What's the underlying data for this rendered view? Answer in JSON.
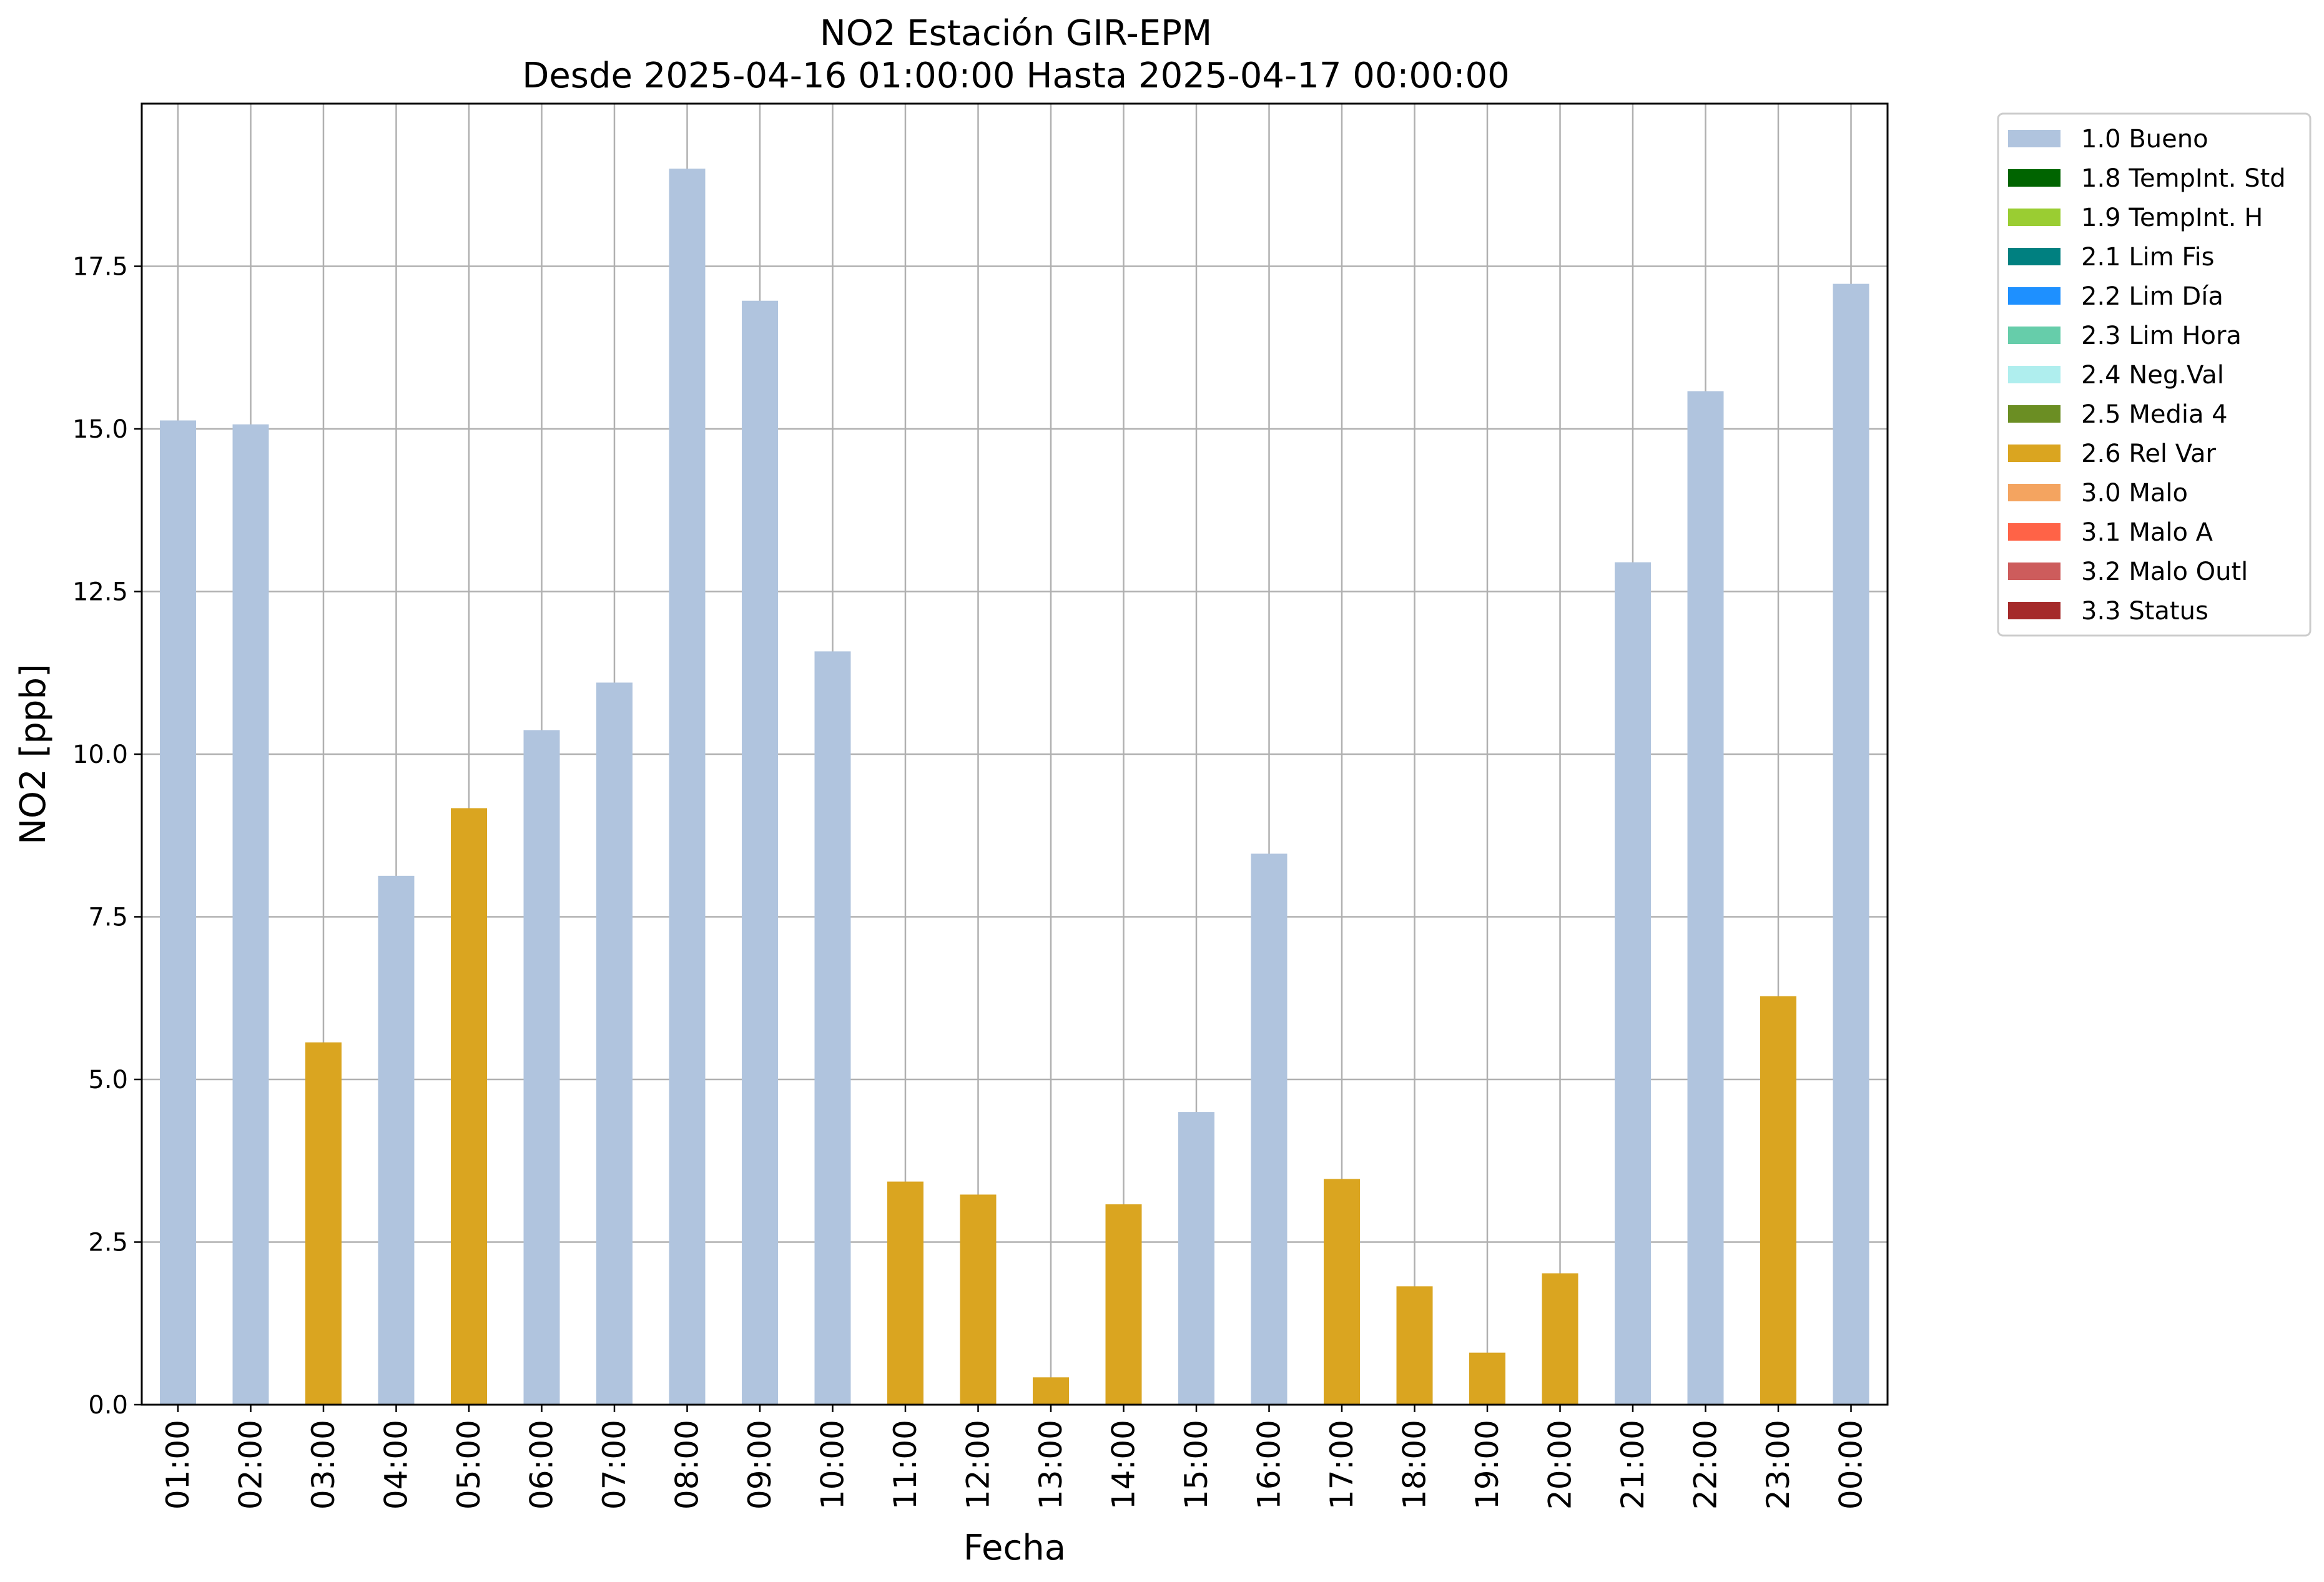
{
  "chart_data": {
    "type": "bar",
    "title": "NO2 Estación GIR-EPM",
    "subtitle": "Desde 2025-04-16 01:00:00 Hasta 2025-04-17 00:00:00",
    "xlabel": "Fecha",
    "ylabel": "NO2 [ppb]",
    "ylim": [
      0,
      20
    ],
    "yticks": [
      "0.0",
      "2.5",
      "5.0",
      "7.5",
      "10.0",
      "12.5",
      "15.0",
      "17.5"
    ],
    "grid": true,
    "legend_position": "outside-top-right",
    "categories": [
      "01:00",
      "02:00",
      "03:00",
      "04:00",
      "05:00",
      "06:00",
      "07:00",
      "08:00",
      "09:00",
      "10:00",
      "11:00",
      "12:00",
      "13:00",
      "14:00",
      "15:00",
      "16:00",
      "17:00",
      "18:00",
      "19:00",
      "20:00",
      "21:00",
      "22:00",
      "23:00",
      "00:00"
    ],
    "values": [
      15.13,
      15.07,
      5.57,
      8.13,
      9.17,
      10.37,
      11.1,
      19.0,
      16.97,
      11.58,
      3.43,
      3.23,
      0.42,
      3.08,
      4.5,
      8.47,
      3.47,
      1.82,
      0.8,
      2.02,
      12.95,
      15.58,
      6.28,
      17.23
    ],
    "flags": [
      "1.0 Bueno",
      "1.0 Bueno",
      "2.6 Rel Var",
      "1.0 Bueno",
      "2.6 Rel Var",
      "1.0 Bueno",
      "1.0 Bueno",
      "1.0 Bueno",
      "1.0 Bueno",
      "1.0 Bueno",
      "2.6 Rel Var",
      "2.6 Rel Var",
      "2.6 Rel Var",
      "2.6 Rel Var",
      "1.0 Bueno",
      "1.0 Bueno",
      "2.6 Rel Var",
      "2.6 Rel Var",
      "2.6 Rel Var",
      "2.6 Rel Var",
      "1.0 Bueno",
      "1.0 Bueno",
      "2.6 Rel Var",
      "1.0 Bueno"
    ],
    "legend": [
      {
        "label": "1.0 Bueno",
        "color": "#b0c4de"
      },
      {
        "label": "1.8 TempInt. Std",
        "color": "#006400"
      },
      {
        "label": "1.9 TempInt. H",
        "color": "#9acd32"
      },
      {
        "label": "2.1 Lim Fis",
        "color": "#008080"
      },
      {
        "label": "2.2 Lim Día",
        "color": "#1e90ff"
      },
      {
        "label": "2.3 Lim Hora",
        "color": "#66cdaa"
      },
      {
        "label": "2.4 Neg.Val",
        "color": "#afeeee"
      },
      {
        "label": "2.5 Media 4",
        "color": "#6b8e23"
      },
      {
        "label": "2.6 Rel Var",
        "color": "#daa520"
      },
      {
        "label": "3.0 Malo",
        "color": "#f4a460"
      },
      {
        "label": "3.1 Malo A",
        "color": "#ff6347"
      },
      {
        "label": "3.2 Malo Outl",
        "color": "#cd5c5c"
      },
      {
        "label": "3.3 Status",
        "color": "#a52a2a"
      }
    ]
  }
}
